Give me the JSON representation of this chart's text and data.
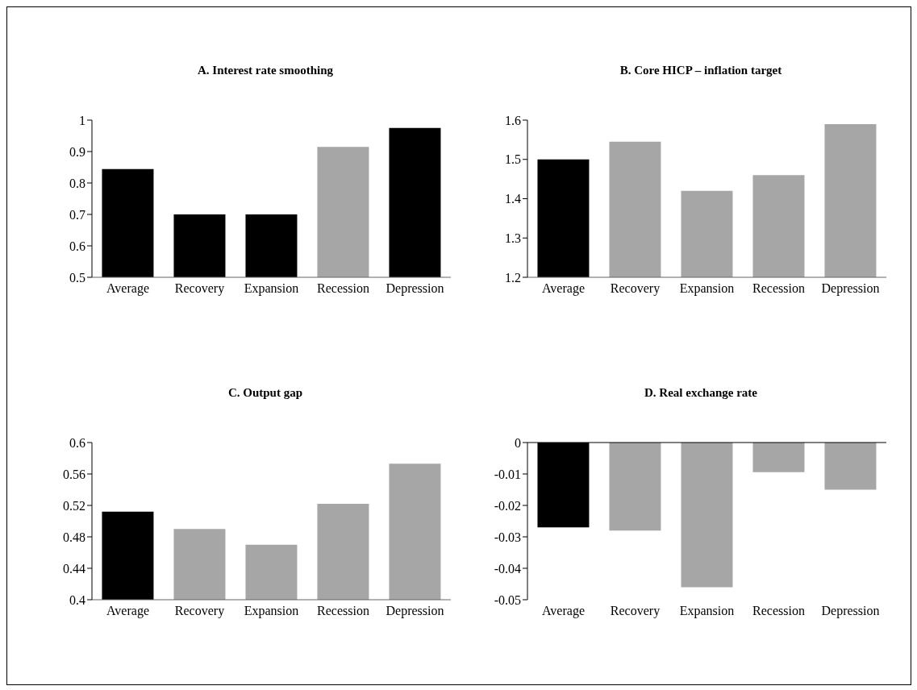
{
  "chart_data": [
    {
      "type": "bar",
      "title": "A. Interest rate smoothing",
      "categories": [
        "Average",
        "Recovery",
        "Expansion",
        "Recession",
        "Depression"
      ],
      "values": [
        0.844,
        0.7,
        0.7,
        0.915,
        0.975
      ],
      "colors": [
        "#000000",
        "#000000",
        "#000000",
        "#a6a6a6",
        "#000000"
      ],
      "ylim": [
        0.5,
        1
      ],
      "yticks": [
        0.5,
        0.6,
        0.7,
        0.8,
        0.9,
        1
      ],
      "grid": false,
      "legend": false
    },
    {
      "type": "bar",
      "title": "B. Core HICP – inflation target",
      "categories": [
        "Average",
        "Recovery",
        "Expansion",
        "Recession",
        "Depression"
      ],
      "values": [
        1.5,
        1.545,
        1.42,
        1.46,
        1.59
      ],
      "colors": [
        "#000000",
        "#a6a6a6",
        "#a6a6a6",
        "#a6a6a6",
        "#a6a6a6"
      ],
      "ylim": [
        1.2,
        1.6
      ],
      "yticks": [
        1.2,
        1.3,
        1.4,
        1.5,
        1.6
      ],
      "grid": false,
      "legend": false
    },
    {
      "type": "bar",
      "title": "C. Output gap",
      "categories": [
        "Average",
        "Recovery",
        "Expansion",
        "Recession",
        "Depression"
      ],
      "values": [
        0.512,
        0.49,
        0.47,
        0.522,
        0.573
      ],
      "colors": [
        "#000000",
        "#a6a6a6",
        "#a6a6a6",
        "#a6a6a6",
        "#a6a6a6"
      ],
      "ylim": [
        0.4,
        0.6
      ],
      "yticks": [
        0.4,
        0.44,
        0.48,
        0.52,
        0.56,
        0.6
      ],
      "grid": false,
      "legend": false
    },
    {
      "type": "bar",
      "title": "D. Real exchange rate",
      "categories": [
        "Average",
        "Recovery",
        "Expansion",
        "Recession",
        "Depression"
      ],
      "values": [
        -0.027,
        -0.028,
        -0.046,
        -0.0094,
        -0.015
      ],
      "colors": [
        "#000000",
        "#a6a6a6",
        "#a6a6a6",
        "#a6a6a6",
        "#a6a6a6"
      ],
      "ylim": [
        -0.05,
        0
      ],
      "yticks": [
        -0.05,
        -0.04,
        -0.03,
        -0.02,
        -0.01,
        0
      ],
      "grid": false,
      "legend": false
    }
  ]
}
